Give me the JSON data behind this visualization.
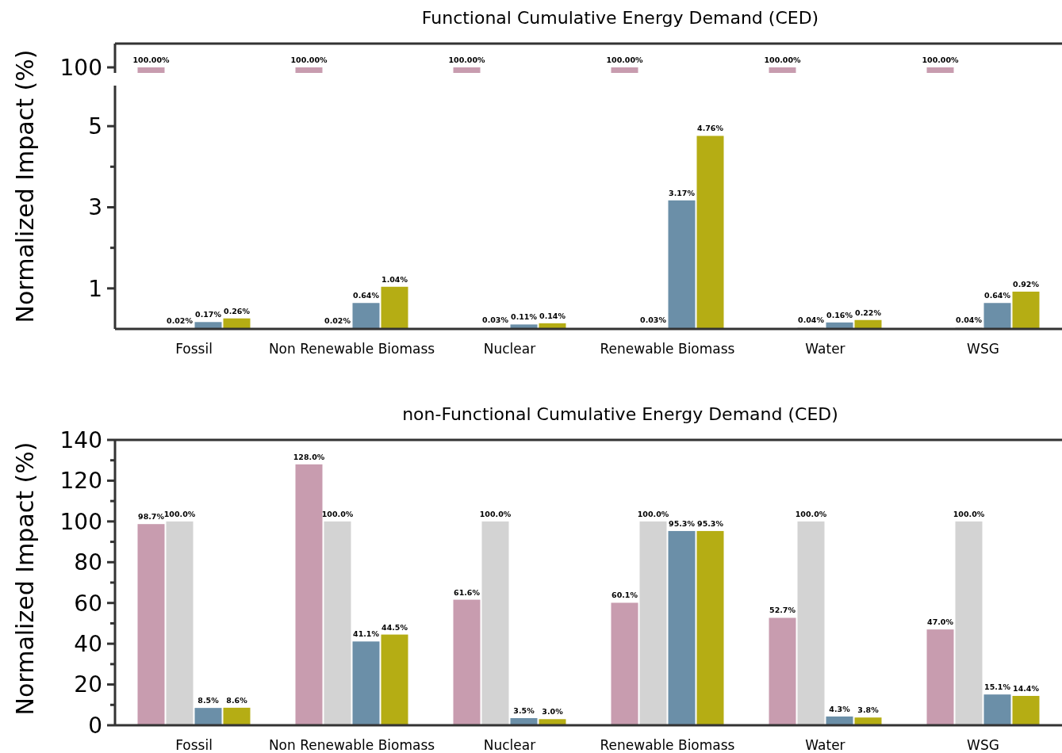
{
  "chart_data": [
    {
      "type": "bar",
      "title": "Functional  Cumulative  Energy  Demand  (CED)",
      "annotations": [
        "100"
      ],
      "categories": [
        null,
        null,
        null,
        null,
        null,
        null
      ],
      "series": [
        {
          "color": "#c89caf",
          "values": [
            100,
            100,
            100,
            100,
            100,
            100
          ],
          "value_labels": [
            "100.00%",
            "100.00%",
            "100.00%",
            "100.00%",
            "100.00%",
            "100.00%"
          ]
        }
      ]
    },
    {
      "type": "bar",
      "ylabel": "Normalized  Impact (%)",
      "categories": [
        "Fossil",
        "Non Renewable Biomass",
        "Nuclear",
        "Renewable Biomass",
        "Water",
        "WSG"
      ],
      "ylim": [
        0,
        6
      ],
      "yticks": [
        1,
        {
          "value": 2,
          "label": null
        },
        3,
        {
          "value": 4,
          "label": null
        },
        5
      ],
      "series": [
        {
          "color": "#d3d3d3",
          "values": [
            0.02,
            0.02,
            0.03,
            0.03,
            0.04,
            0.04
          ],
          "value_labels": [
            "0.02%",
            "0.02%",
            "0.03%",
            "0.03%",
            "0.04%",
            "0.04%"
          ]
        },
        {
          "color": "#6b8fa8",
          "values": [
            0.17,
            0.64,
            0.11,
            3.17,
            0.16,
            0.64
          ],
          "value_labels": [
            "0.17%",
            "0.64%",
            "0.11%",
            "3.17%",
            "0.16%",
            "0.64%"
          ]
        },
        {
          "color": "#b5ad14",
          "values": [
            0.26,
            1.04,
            0.14,
            4.76,
            0.22,
            0.92
          ],
          "value_labels": [
            "0.26%",
            "1.04%",
            "0.14%",
            "4.76%",
            "0.22%",
            "0.92%"
          ]
        }
      ]
    },
    {
      "type": "bar",
      "title": "non-Functional  Cumulative  Energy  Demand  (CED)",
      "ylabel": "Normalized  Impact (%)",
      "categories": [
        "Fossil",
        "Non Renewable Biomass",
        "Nuclear",
        "Renewable Biomass",
        "Water",
        "WSG"
      ],
      "ylim": [
        0,
        140
      ],
      "yticks": [
        0,
        {
          "value": 10,
          "label": null
        },
        20,
        {
          "value": 30,
          "label": null
        },
        40,
        {
          "value": 50,
          "label": null
        },
        60,
        {
          "value": 70,
          "label": null
        },
        80,
        {
          "value": 90,
          "label": null
        },
        100,
        {
          "value": 110,
          "label": null
        },
        120,
        {
          "value": 130,
          "label": null
        },
        140
      ],
      "series": [
        {
          "color": "#c89caf",
          "values": [
            98.7,
            128.0,
            61.6,
            60.1,
            52.7,
            47.0
          ],
          "value_labels": [
            "98.7%",
            "128.0%",
            "61.6%",
            "60.1%",
            "52.7%",
            "47.0%"
          ]
        },
        {
          "color": "#d3d3d3",
          "values": [
            100,
            100,
            100,
            100,
            100,
            100
          ],
          "value_labels": [
            "100.0%",
            "100.0%",
            "100.0%",
            "100.0%",
            "100.0%",
            "100.0%"
          ]
        },
        {
          "color": "#6b8fa8",
          "values": [
            8.5,
            41.1,
            3.5,
            95.3,
            4.3,
            15.1
          ],
          "value_labels": [
            "8.5%",
            "41.1%",
            "3.5%",
            "95.3%",
            "4.3%",
            "15.1%"
          ]
        },
        {
          "color": "#b5ad14",
          "values": [
            8.6,
            44.5,
            3.0,
            95.3,
            3.8,
            14.4
          ],
          "value_labels": [
            "8.6%",
            "44.5%",
            "3.0%",
            "95.3%",
            "3.8%",
            "14.4%"
          ]
        }
      ]
    }
  ]
}
